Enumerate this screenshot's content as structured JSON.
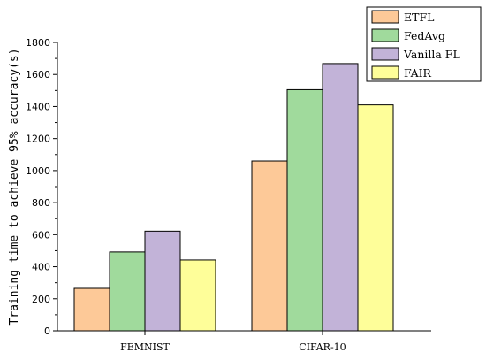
{
  "chart_data": {
    "type": "bar",
    "categories": [
      "FEMNIST",
      "CIFAR-10"
    ],
    "series": [
      {
        "name": "ETFL",
        "values": [
          265,
          1060
        ],
        "color": "#FDC998"
      },
      {
        "name": "FedAvg",
        "values": [
          492,
          1505
        ],
        "color": "#A0DA9C"
      },
      {
        "name": "Vanilla FL",
        "values": [
          622,
          1668
        ],
        "color": "#C2B3D8"
      },
      {
        "name": "FAIR",
        "values": [
          442,
          1410
        ],
        "color": "#FEFE99"
      }
    ],
    "title": "",
    "xlabel": "",
    "ylabel": "Training time to achieve 95% accuracy(s)",
    "ylim": [
      0,
      1800
    ],
    "yticks": [
      0,
      200,
      400,
      600,
      800,
      1000,
      1200,
      1400,
      1600,
      1800
    ],
    "grid": false,
    "legend_position": "top-right"
  }
}
